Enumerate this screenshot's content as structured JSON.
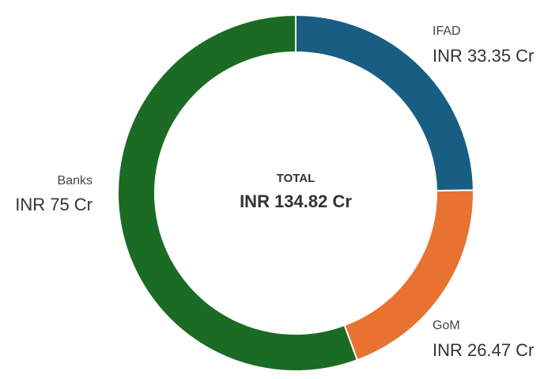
{
  "chart_data": {
    "type": "donut",
    "center_title": "TOTAL",
    "center_value": "INR 134.82 Cr",
    "categories": [
      "IFAD",
      "GoM",
      "Banks"
    ],
    "values": [
      33.35,
      26.47,
      75
    ],
    "value_labels": [
      "INR 33.35 Cr",
      "INR 26.47 Cr",
      "INR 75 Cr"
    ],
    "colors": [
      "#175e82",
      "#e87331",
      "#1c6b24"
    ]
  }
}
